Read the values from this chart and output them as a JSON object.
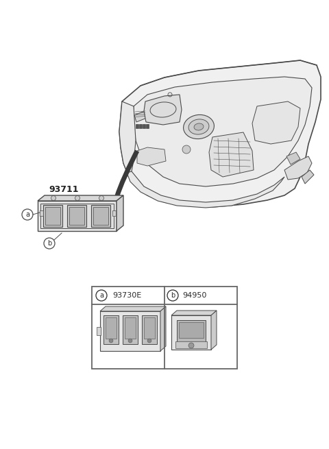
{
  "bg_color": "#ffffff",
  "part_number_main": "93711",
  "table_label_a": "a",
  "table_part_a": "93730E",
  "table_label_b": "b",
  "table_part_b": "94950",
  "line_color": "#4a4a4a",
  "text_color": "#2a2a2a",
  "table_border_color": "#666666",
  "dash_fill": "#f5f5f5",
  "switch_fill": "#e8e8e8",
  "callout_line_color": "#555555",
  "part_num_color": "#222222"
}
